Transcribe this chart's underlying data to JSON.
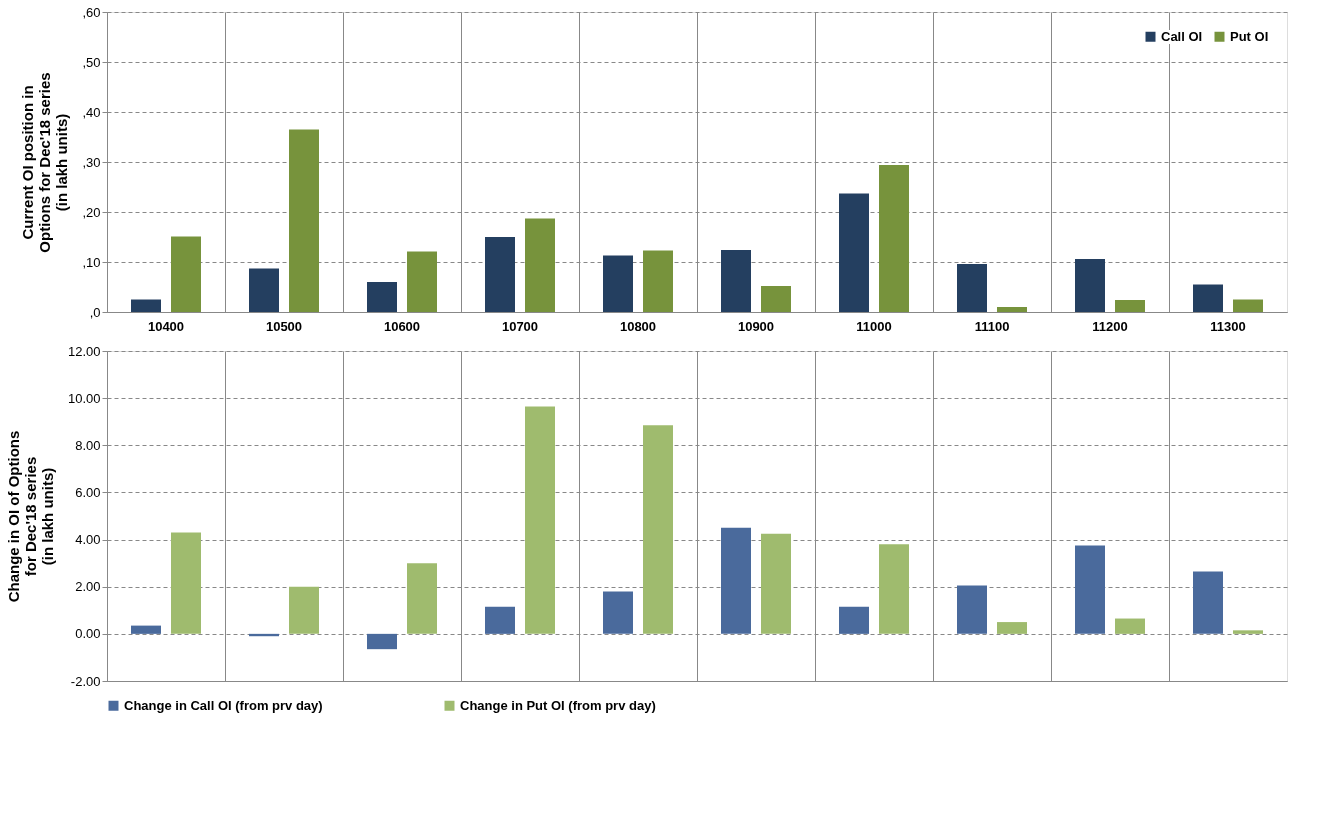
{
  "chart_data": [
    {
      "type": "bar",
      "ylabel": "Current OI position in\nOptions for Dec'18 series\n(in lakh units)",
      "categories": [
        "10400",
        "10500",
        "10600",
        "10700",
        "10800",
        "10900",
        "11000",
        "11100",
        "11200",
        "11300"
      ],
      "series": [
        {
          "name": "Call OI",
          "color": "#243f60",
          "values": [
            2.5,
            8.7,
            6.0,
            15.0,
            11.3,
            12.4,
            23.7,
            9.6,
            10.6,
            5.5
          ]
        },
        {
          "name": "Put OI",
          "color": "#77933c",
          "values": [
            15.1,
            36.5,
            12.1,
            18.7,
            12.3,
            5.2,
            29.4,
            1.0,
            2.4,
            2.5
          ]
        }
      ],
      "ylim": [
        0,
        60
      ],
      "yticks": [
        {
          "value": 0,
          "label": ",0"
        },
        {
          "value": 10,
          "label": ",10"
        },
        {
          "value": 20,
          "label": ",20"
        },
        {
          "value": 30,
          "label": ",30"
        },
        {
          "value": 40,
          "label": ",40"
        },
        {
          "value": 50,
          "label": ",50"
        },
        {
          "value": 60,
          "label": ",60"
        }
      ],
      "grid": true,
      "legend": "top right"
    },
    {
      "type": "bar",
      "ylabel": "Change in OI of Options\nfor Dec'18 series\n(in lakh units)",
      "categories": [
        "10400",
        "10500",
        "10600",
        "10700",
        "10800",
        "10900",
        "11000",
        "11100",
        "11200",
        "11300"
      ],
      "series": [
        {
          "name": "Change in Call OI (from prv day)",
          "color": "#4a6a9c",
          "values": [
            0.35,
            -0.1,
            -0.65,
            1.15,
            1.8,
            4.5,
            1.15,
            2.05,
            3.75,
            2.65
          ]
        },
        {
          "name": "Change in Put OI (from prv day)",
          "color": "#9fbb6e",
          "values": [
            4.3,
            2.0,
            3.0,
            9.65,
            8.85,
            4.25,
            3.8,
            0.5,
            0.65,
            0.15
          ]
        }
      ],
      "ylim": [
        -2,
        12
      ],
      "yticks": [
        {
          "value": -2,
          "label": "-2.00"
        },
        {
          "value": 0,
          "label": "0.00"
        },
        {
          "value": 2,
          "label": "2.00"
        },
        {
          "value": 4,
          "label": "4.00"
        },
        {
          "value": 6,
          "label": "6.00"
        },
        {
          "value": 8,
          "label": "8.00"
        },
        {
          "value": 10,
          "label": "10.00"
        },
        {
          "value": 12,
          "label": "12.00"
        }
      ],
      "grid": true,
      "legend": "bottom",
      "tick_labels": "y"
    }
  ]
}
